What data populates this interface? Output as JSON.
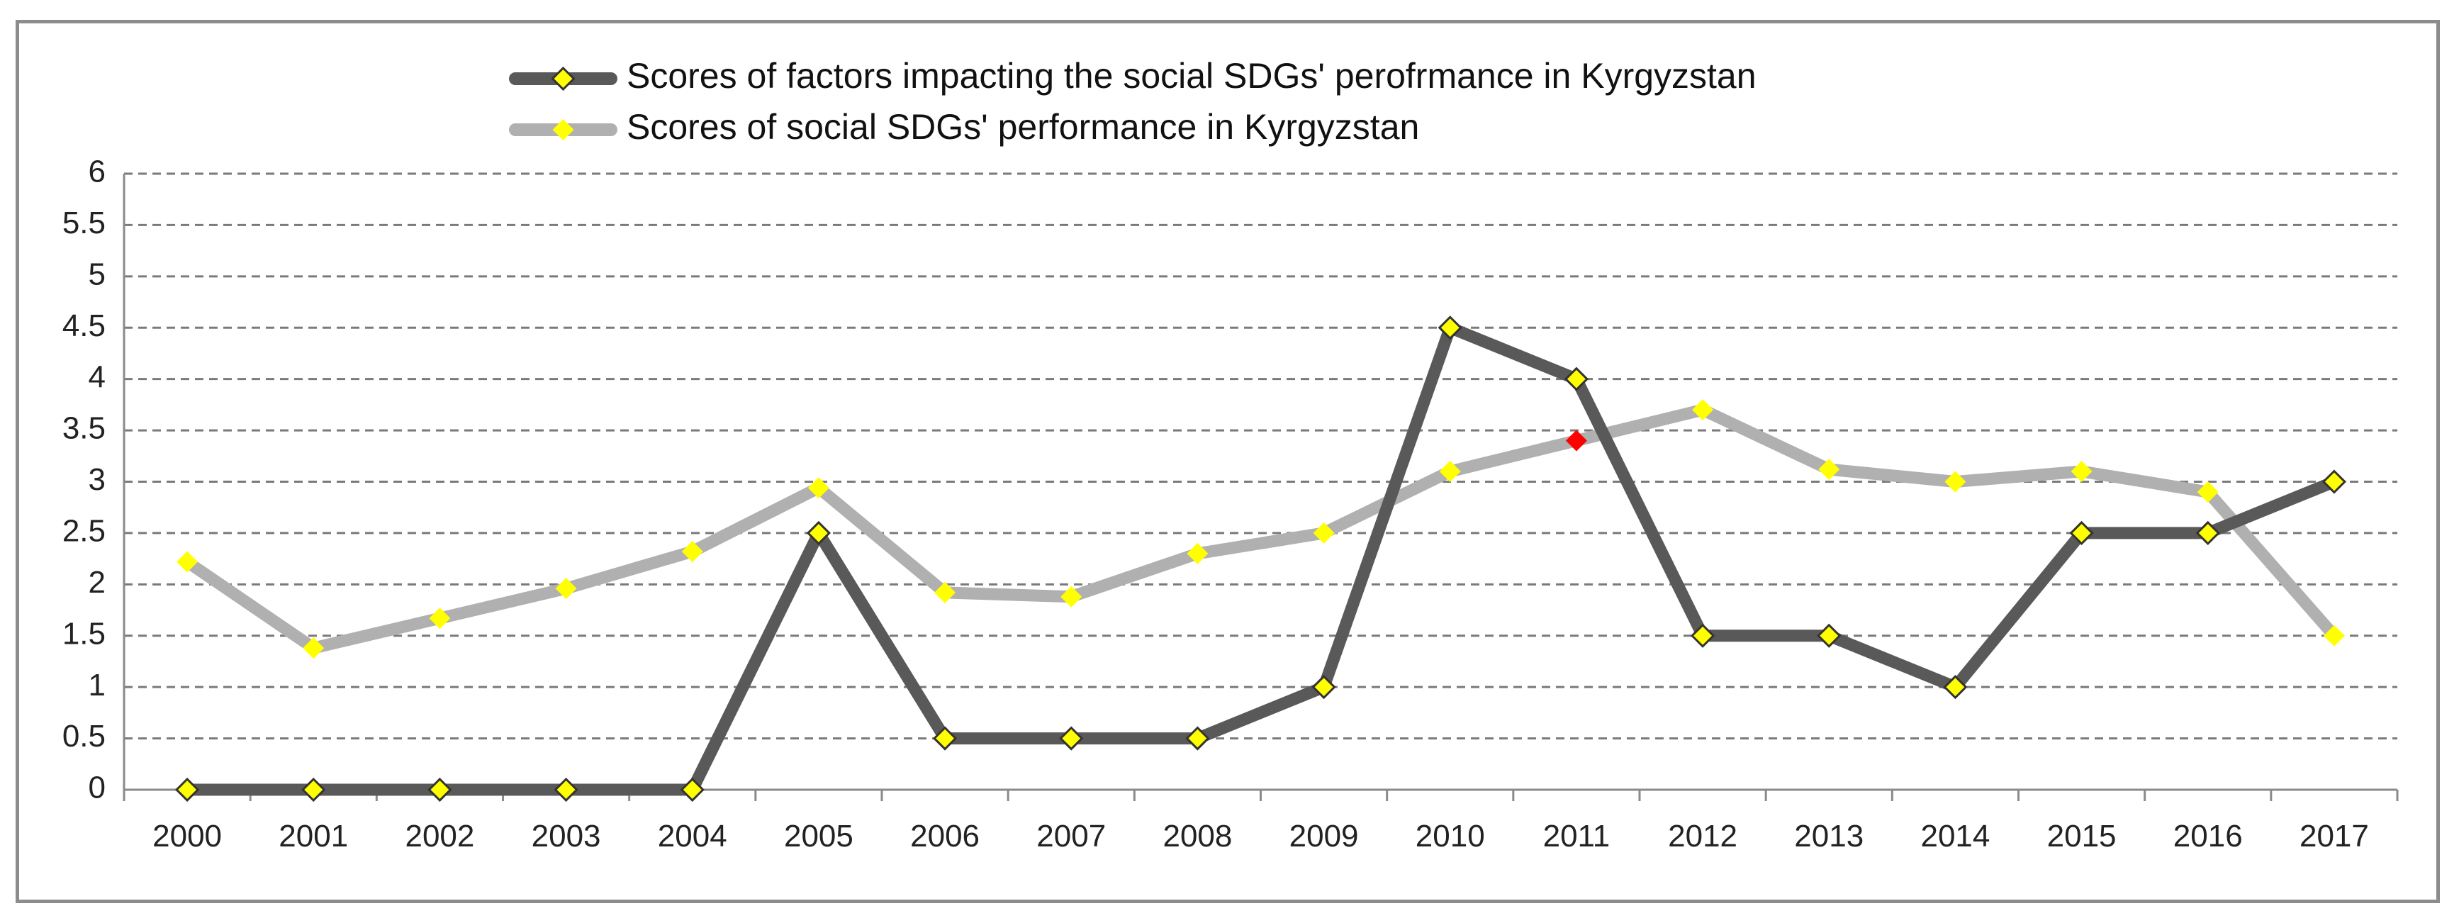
{
  "chart_data": {
    "type": "line",
    "title": "",
    "xlabel": "",
    "ylabel": "",
    "categories": [
      "2000",
      "2001",
      "2002",
      "2003",
      "2004",
      "2005",
      "2006",
      "2007",
      "2008",
      "2009",
      "2010",
      "2011",
      "2012",
      "2013",
      "2014",
      "2015",
      "2016",
      "2017"
    ],
    "ylim": [
      0,
      6
    ],
    "yticks": [
      "0",
      "0.5",
      "1",
      "1.5",
      "2",
      "2.5",
      "3",
      "3.5",
      "4",
      "4.5",
      "5",
      "5.5",
      "6"
    ],
    "grid": "horizontal dashed",
    "legend_position": "top-center",
    "series": [
      {
        "name": "Scores of factors impacting the social SDGs' perofrmance in Kyrgyzstan",
        "line_color": "#595959",
        "marker_color": "#ffff00",
        "values": [
          0,
          0,
          0,
          0,
          0,
          2.5,
          0.5,
          0.5,
          0.5,
          1,
          4.5,
          4,
          1.5,
          1.5,
          1,
          2.5,
          2.5,
          3
        ]
      },
      {
        "name": "Scores of social SDGs' performance in Kyrgyzstan",
        "line_color": "#b0b0b0",
        "marker_color": "#ffff00",
        "values": [
          2.22,
          1.38,
          1.67,
          1.96,
          2.32,
          2.94,
          1.92,
          1.88,
          2.3,
          2.5,
          3.1,
          3.4,
          3.7,
          3.12,
          3,
          3.1,
          2.9,
          1.5
        ],
        "highlight_index": 11,
        "highlight_color": "#ff0000"
      }
    ]
  }
}
